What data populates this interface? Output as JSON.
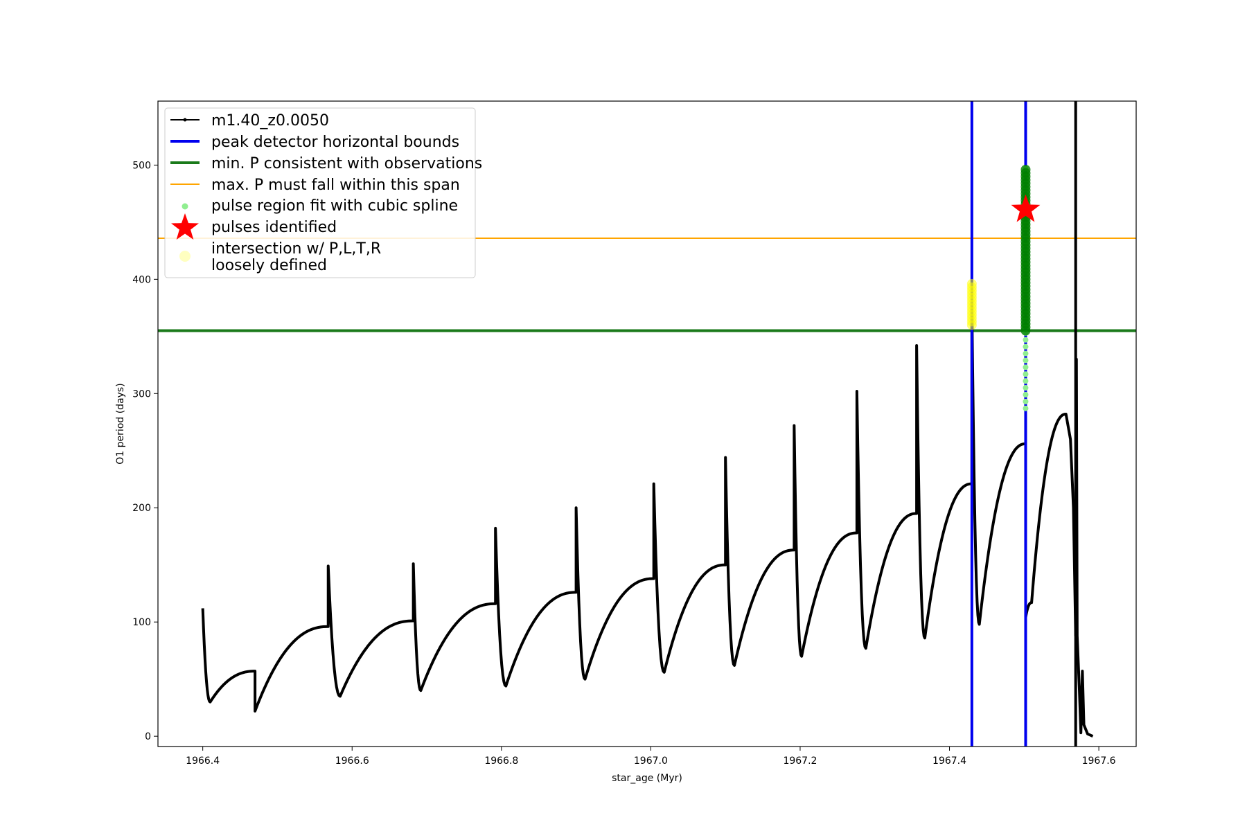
{
  "colors": {
    "main_line": "#000000",
    "peak_bounds": "#0000ee",
    "min_period": "#1a7a1a",
    "max_period": "#ffa500",
    "spline_points": "#90ee90",
    "pulse_points": "#008000",
    "pulse_star": "#ff0000",
    "intersection": "#ffff00",
    "loose": "#ffffc0"
  },
  "chart_data": {
    "type": "line",
    "xlabel": "star_age (Myr)",
    "ylabel": "O1 period (days)",
    "xlim": [
      1966.34,
      1967.65
    ],
    "ylim": [
      -9,
      556
    ],
    "xticks": [
      {
        "value": 1966.4,
        "label": "1966.4"
      },
      {
        "value": 1966.6,
        "label": "1966.6"
      },
      {
        "value": 1966.8,
        "label": "1966.8"
      },
      {
        "value": 1967.0,
        "label": "1967.0"
      },
      {
        "value": 1967.2,
        "label": "1967.2"
      },
      {
        "value": 1967.4,
        "label": "1967.4"
      },
      {
        "value": 1967.6,
        "label": "1967.6"
      }
    ],
    "yticks": [
      {
        "value": 0,
        "label": "0"
      },
      {
        "value": 100,
        "label": "100"
      },
      {
        "value": 200,
        "label": "200"
      },
      {
        "value": 300,
        "label": "300"
      },
      {
        "value": 400,
        "label": "400"
      },
      {
        "value": 500,
        "label": "500"
      }
    ],
    "grid": false,
    "legend_position": "top-left",
    "legend": [
      {
        "label": "m1.40_z0.0050",
        "marker": "line-dot"
      },
      {
        "label": "peak detector horizontal bounds",
        "marker": "thick-line-blue"
      },
      {
        "label": "min. P consistent with observations",
        "marker": "thick-line-green"
      },
      {
        "label": "max. P must fall within this span",
        "marker": "thin-line-orange"
      },
      {
        "label": "pulse region fit with cubic spline",
        "marker": "dot-lightgreen"
      },
      {
        "label": "pulses identified",
        "marker": "star-red"
      },
      {
        "label": "intersection w/ P,L,T,R",
        "label2": "loosely defined",
        "marker": "circle-paleyellow"
      }
    ],
    "hlines": [
      {
        "name": "min-period",
        "y": 355,
        "color_key": "min_period"
      },
      {
        "name": "max-period",
        "y": 436,
        "color_key": "max_period"
      }
    ],
    "vlines": [
      {
        "name": "peak-bound-left",
        "x": 1967.43,
        "color_key": "peak_bounds"
      },
      {
        "name": "peak-bound-right",
        "x": 1967.502,
        "color_key": "peak_bounds"
      },
      {
        "name": "end-marker",
        "x": 1967.569,
        "color_key": "main_line"
      }
    ],
    "series": [
      {
        "name": "m1.40_z0.0050",
        "cycles": [
          {
            "x0": 1966.4,
            "spike": 112,
            "min": 30,
            "min_x": 1966.41,
            "end": 57,
            "x1": 1966.47
          },
          {
            "x0": 1966.47,
            "spike": 22,
            "min": 22,
            "min_x": 1966.47,
            "end": 96,
            "x1": 1966.568
          },
          {
            "x0": 1966.568,
            "spike": 149,
            "min": 35,
            "min_x": 1966.584,
            "end": 101,
            "x1": 1966.682
          },
          {
            "x0": 1966.682,
            "spike": 151,
            "min": 40,
            "min_x": 1966.692,
            "end": 116,
            "x1": 1966.792
          },
          {
            "x0": 1966.792,
            "spike": 182,
            "min": 44,
            "min_x": 1966.806,
            "end": 126,
            "x1": 1966.9
          },
          {
            "x0": 1966.9,
            "spike": 200,
            "min": 50,
            "min_x": 1966.912,
            "end": 138,
            "x1": 1967.004
          },
          {
            "x0": 1967.004,
            "spike": 221,
            "min": 56,
            "min_x": 1967.018,
            "end": 150,
            "x1": 1967.1
          },
          {
            "x0": 1967.1,
            "spike": 244,
            "min": 62,
            "min_x": 1967.112,
            "end": 163,
            "x1": 1967.192
          },
          {
            "x0": 1967.192,
            "spike": 272,
            "min": 70,
            "min_x": 1967.202,
            "end": 178,
            "x1": 1967.276
          },
          {
            "x0": 1967.276,
            "spike": 302,
            "min": 77,
            "min_x": 1967.288,
            "end": 195,
            "x1": 1967.356
          },
          {
            "x0": 1967.356,
            "spike": 342,
            "min": 86,
            "min_x": 1967.367,
            "end": 221,
            "x1": 1967.43
          },
          {
            "x0": 1967.43,
            "spike": 380,
            "min": 98,
            "min_x": 1967.44,
            "end": 256,
            "x1": 1967.502
          },
          {
            "x0": 1967.502,
            "spike": 470,
            "min": 104,
            "min_x": 1967.502,
            "end": 117,
            "x1": 1967.51
          },
          {
            "x0": 1967.51,
            "spike": 117,
            "min": 117,
            "min_x": 1967.51,
            "end": 282,
            "x1": 1967.556
          }
        ],
        "tail": [
          [
            1967.556,
            282
          ],
          [
            1967.562,
            260
          ],
          [
            1967.566,
            200
          ],
          [
            1967.569,
            88
          ],
          [
            1967.57,
            330
          ],
          [
            1967.571,
            88
          ],
          [
            1967.574,
            40
          ],
          [
            1967.576,
            3
          ],
          [
            1967.578,
            57
          ],
          [
            1967.58,
            10
          ],
          [
            1967.585,
            2
          ],
          [
            1967.592,
            0
          ]
        ]
      }
    ],
    "spline_points": {
      "x": 1967.502,
      "y_from": 287,
      "y_to": 500
    },
    "pulse_points": {
      "x": 1967.502,
      "y_from": 355,
      "y_to": 497
    },
    "pulse_star": {
      "x": 1967.502,
      "y": 461
    },
    "intersection_points": {
      "x": 1967.43,
      "y_from": 360,
      "y_to": 396
    }
  }
}
